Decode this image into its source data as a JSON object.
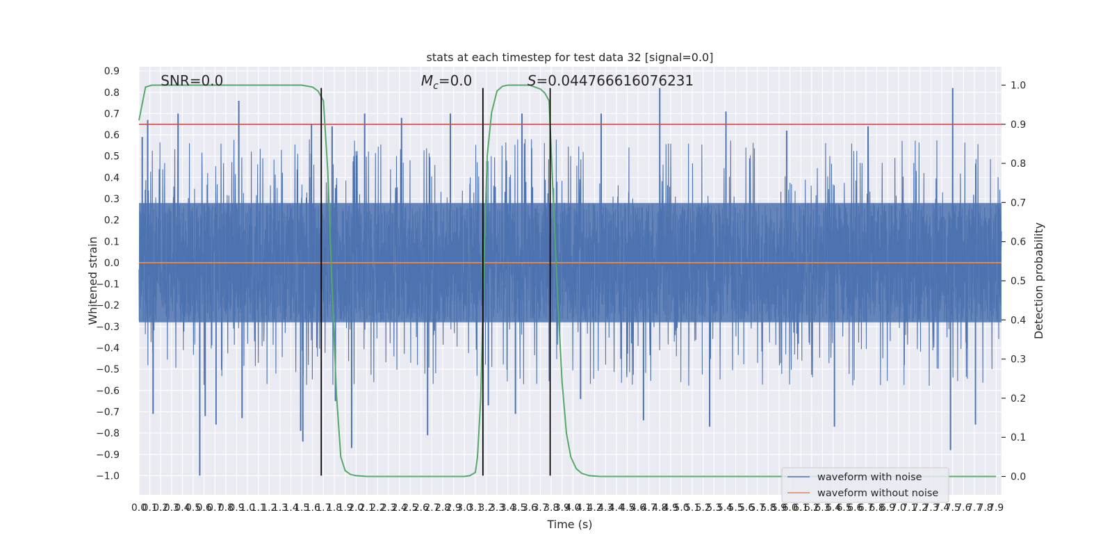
{
  "chart_data": {
    "type": "line",
    "title": "stats at each timestep for test data 32 [signal=0.0]",
    "xlabel": "Time (s)",
    "ylabel": "Whitened strain",
    "y2label": "Detection probability",
    "xlim": [
      0.0,
      7.95
    ],
    "ylim": [
      -1.09,
      0.92
    ],
    "y2lim": [
      -0.047,
      1.047
    ],
    "x_ticks": [
      0.0,
      0.1,
      0.2,
      0.3,
      0.4,
      0.5,
      0.6,
      0.7,
      0.8,
      0.9,
      1.0,
      1.1,
      1.2,
      1.3,
      1.4,
      1.5,
      1.6,
      1.7,
      1.8,
      1.9,
      2.0,
      2.1,
      2.2,
      2.3,
      2.4,
      2.5,
      2.6,
      2.7,
      2.8,
      2.9,
      3.0,
      3.1,
      3.2,
      3.3,
      3.4,
      3.5,
      3.6,
      3.7,
      3.8,
      3.9,
      4.0,
      4.1,
      4.2,
      4.3,
      4.4,
      4.5,
      4.6,
      4.7,
      4.8,
      4.9,
      5.0,
      5.1,
      5.2,
      5.3,
      5.4,
      5.5,
      5.6,
      5.7,
      5.8,
      5.9,
      6.0,
      6.1,
      6.2,
      6.3,
      6.4,
      6.5,
      6.6,
      6.7,
      6.8,
      6.9,
      7.0,
      7.1,
      7.2,
      7.3,
      7.4,
      7.5,
      7.6,
      7.7,
      7.8,
      7.9
    ],
    "y_ticks": [
      0.9,
      0.8,
      0.7,
      0.6,
      0.5,
      0.4,
      0.3,
      0.2,
      0.1,
      0.0,
      -0.1,
      -0.2,
      -0.3,
      -0.4,
      -0.5,
      -0.6,
      -0.7,
      -0.8,
      -0.9,
      -1.0
    ],
    "y_tick_labels": [
      "0.9",
      "0.8",
      "0.7",
      "0.6",
      "0.5",
      "0.4",
      "0.3",
      "0.2",
      "0.1",
      "0.0",
      "−0.1",
      "−0.2",
      "−0.3",
      "−0.4",
      "−0.5",
      "−0.6",
      "−0.7",
      "−0.8",
      "−0.9",
      "−1.0"
    ],
    "y2_ticks": [
      1.0,
      0.9,
      0.8,
      0.7,
      0.6,
      0.5,
      0.4,
      0.3,
      0.2,
      0.1,
      0.0
    ],
    "y2_tick_labels": [
      "1.0",
      "0.9",
      "0.8",
      "0.7",
      "0.6",
      "0.5",
      "0.4",
      "0.3",
      "0.2",
      "0.1",
      "0.0"
    ],
    "threshold": 0.9,
    "vertical_lines_x": [
      1.68,
      3.17,
      3.79
    ],
    "vertical_lines_ylim": [
      -1.0,
      0.82
    ],
    "series": [
      {
        "name": "waveform with noise",
        "color": "#4c72b0",
        "axis": "left",
        "sample_rate": 512,
        "envelope_upper": 0.28,
        "envelope_lower": -0.28,
        "peaks": [
          {
            "x": 0.03,
            "y": 0.59
          },
          {
            "x": 0.08,
            "y": 0.67
          },
          {
            "x": 0.36,
            "y": 0.7
          },
          {
            "x": 0.92,
            "y": 0.76
          },
          {
            "x": 1.59,
            "y": 0.65
          },
          {
            "x": 1.78,
            "y": 0.64
          },
          {
            "x": 2.08,
            "y": 0.7
          },
          {
            "x": 2.42,
            "y": 0.68
          },
          {
            "x": 2.87,
            "y": 0.7
          },
          {
            "x": 3.53,
            "y": 0.7
          },
          {
            "x": 4.26,
            "y": 0.7
          },
          {
            "x": 4.8,
            "y": 0.82
          },
          {
            "x": 5.41,
            "y": 0.71
          },
          {
            "x": 5.97,
            "y": 0.62
          },
          {
            "x": 6.72,
            "y": 0.64
          },
          {
            "x": 7.5,
            "y": 0.82
          },
          {
            "x": 0.56,
            "y": -1.0
          },
          {
            "x": 0.13,
            "y": -0.71
          },
          {
            "x": 0.61,
            "y": -0.72
          },
          {
            "x": 0.71,
            "y": -0.76
          },
          {
            "x": 0.95,
            "y": -0.73
          },
          {
            "x": 1.51,
            "y": -0.84
          },
          {
            "x": 1.49,
            "y": -0.79
          },
          {
            "x": 1.81,
            "y": -0.65
          },
          {
            "x": 1.96,
            "y": -0.87
          },
          {
            "x": 2.66,
            "y": -0.81
          },
          {
            "x": 3.22,
            "y": -0.67
          },
          {
            "x": 3.47,
            "y": -0.71
          },
          {
            "x": 4.07,
            "y": -0.64
          },
          {
            "x": 4.65,
            "y": -0.74
          },
          {
            "x": 5.26,
            "y": -0.77
          },
          {
            "x": 6.41,
            "y": -0.77
          },
          {
            "x": 7.48,
            "y": -0.88
          },
          {
            "x": 7.71,
            "y": -0.76
          }
        ]
      },
      {
        "name": "waveform without noise",
        "color": "#dd8452",
        "axis": "left",
        "x": [
          0.0,
          7.95
        ],
        "y": [
          0.0,
          0.0
        ]
      },
      {
        "name": "detection probability",
        "color": "#55a868",
        "axis": "right",
        "x": [
          0.0,
          0.06,
          0.12,
          0.2,
          0.4,
          0.8,
          1.2,
          1.5,
          1.6,
          1.65,
          1.7,
          1.74,
          1.78,
          1.82,
          1.86,
          1.9,
          1.95,
          2.0,
          2.1,
          2.3,
          2.8,
          3.0,
          3.05,
          3.1,
          3.12,
          3.15,
          3.18,
          3.21,
          3.25,
          3.3,
          3.35,
          3.4,
          3.5,
          3.6,
          3.7,
          3.74,
          3.78,
          3.82,
          3.86,
          3.9,
          3.94,
          3.98,
          4.03,
          4.08,
          4.15,
          4.25,
          4.5,
          5.0,
          6.0,
          7.0,
          7.9
        ],
        "y": [
          0.91,
          0.995,
          1.0,
          1.0,
          1.0,
          1.0,
          1.0,
          1.0,
          0.995,
          0.985,
          0.96,
          0.78,
          0.48,
          0.21,
          0.05,
          0.015,
          0.005,
          0.002,
          0.0,
          0.0,
          0.0,
          0.0,
          0.002,
          0.01,
          0.05,
          0.2,
          0.55,
          0.82,
          0.93,
          0.985,
          0.997,
          1.0,
          1.0,
          1.0,
          0.99,
          0.98,
          0.96,
          0.7,
          0.45,
          0.24,
          0.11,
          0.05,
          0.02,
          0.008,
          0.002,
          0.0,
          0.0,
          0.0,
          0.0,
          0.0,
          0.0
        ]
      }
    ],
    "threshold_color": "#c44e52",
    "vertical_line_color": "#000000",
    "annotations": [
      {
        "text": "SNR=0.0",
        "x": 0.2
      },
      {
        "text_italic": "M",
        "sub": "c",
        "text": "=0.0",
        "x": 2.6
      },
      {
        "text_italic": "S",
        "text": "=0.044766616076231",
        "x": 3.58
      }
    ],
    "legend": {
      "placement": "lower-right",
      "entries": [
        "waveform with noise",
        "waveform without noise"
      ]
    }
  }
}
